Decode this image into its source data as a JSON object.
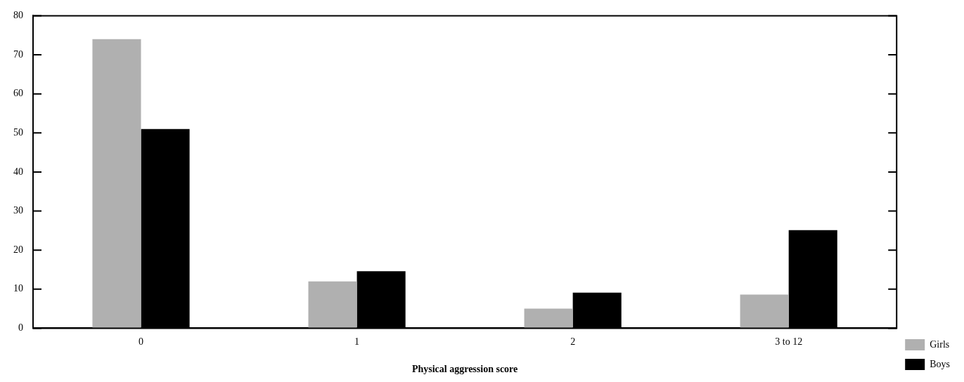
{
  "chart_data": {
    "type": "bar",
    "xlabel": "Physical aggression score",
    "categories": [
      "0",
      "1",
      "2",
      "3 to 12"
    ],
    "series": [
      {
        "name": "Girls",
        "color": "#b0b0b0",
        "values": [
          74,
          12,
          5,
          8.6
        ]
      },
      {
        "name": "Boys",
        "color": "#000000",
        "values": [
          51,
          14.6,
          9.1,
          25.1
        ]
      }
    ],
    "ylim": [
      0,
      80
    ],
    "yticks": [
      0,
      10,
      20,
      30,
      40,
      50,
      60,
      70,
      80
    ],
    "grid": false,
    "legend": "right"
  }
}
